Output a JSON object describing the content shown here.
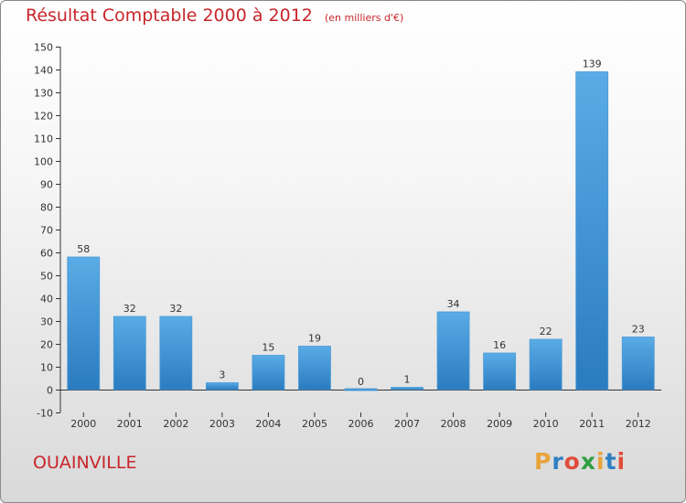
{
  "header": {
    "title": "Résultat Comptable 2000 à 2012",
    "subtitle": "(en milliers d'€)"
  },
  "footer": {
    "commune": "OUAINVILLE",
    "logo_text": "Proxiti",
    "logo_colors": [
      "#e8a33a",
      "#2f7fc3",
      "#e04c3a",
      "#2f9e44",
      "#e8a33a",
      "#2f7fc3",
      "#e04c3a"
    ]
  },
  "colors": {
    "title": "#c8262a",
    "bar_light": "#5aace6",
    "bar_dark": "#2a7cc0",
    "axis": "#333333"
  },
  "chart_data": {
    "type": "bar",
    "title": "Résultat Comptable 2000 à 2012",
    "subtitle": "(en milliers d'€)",
    "categories": [
      "2000",
      "2001",
      "2002",
      "2003",
      "2004",
      "2005",
      "2006",
      "2007",
      "2008",
      "2009",
      "2010",
      "2011",
      "2012"
    ],
    "values": [
      58,
      32,
      32,
      3,
      15,
      19,
      0,
      1,
      34,
      16,
      22,
      139,
      23
    ],
    "data_labels": [
      "58",
      "32",
      "32",
      "3",
      "15",
      "19",
      "0",
      "1",
      "34",
      "16",
      "22",
      "139",
      "23"
    ],
    "ylim": [
      -10,
      150
    ],
    "yticks": [
      -10,
      0,
      10,
      20,
      30,
      40,
      50,
      60,
      70,
      80,
      90,
      100,
      110,
      120,
      130,
      140,
      150
    ],
    "grid": false,
    "legend": "none"
  }
}
